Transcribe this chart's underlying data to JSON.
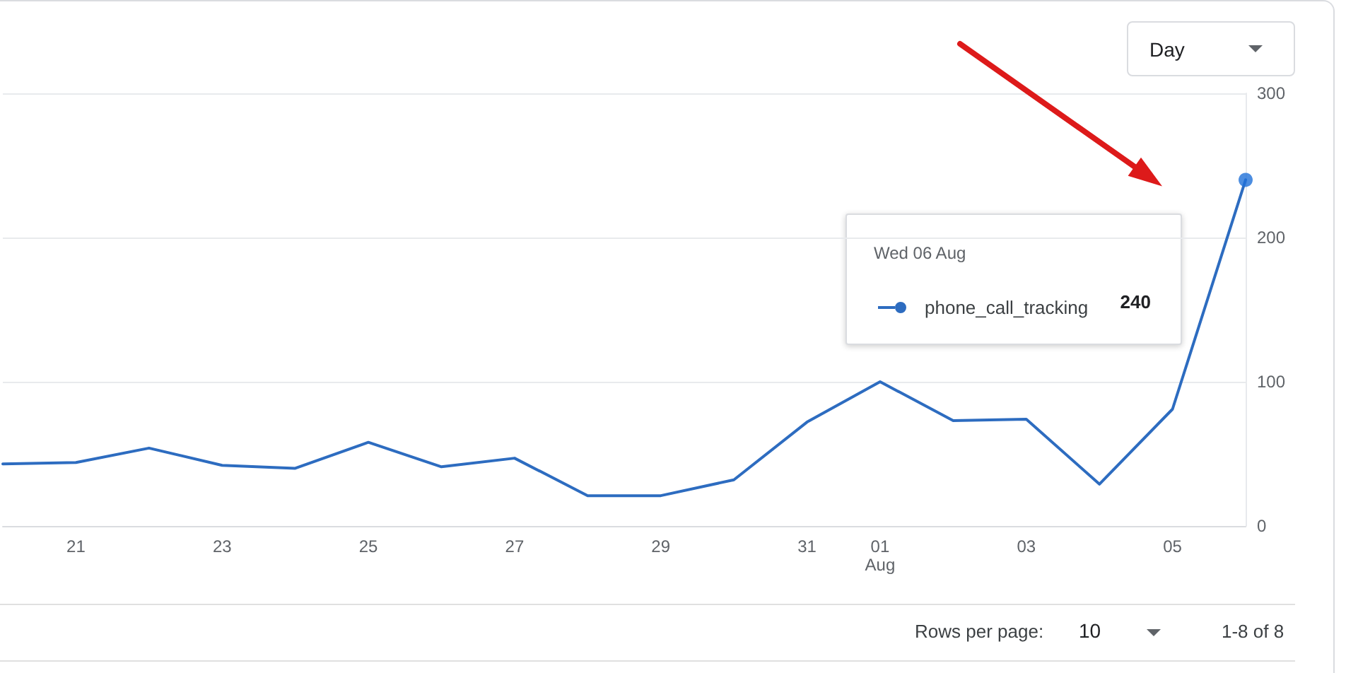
{
  "chart_data": {
    "type": "line",
    "x": [
      "--07-20",
      "--07-21",
      "--07-22",
      "--07-23",
      "--07-24",
      "--07-25",
      "--07-26",
      "--07-27",
      "--07-28",
      "--07-29",
      "--07-30",
      "--07-31",
      "--08-01",
      "--08-02",
      "--08-03",
      "--08-04",
      "--08-05",
      "--08-06"
    ],
    "xlim": [
      "--07-20",
      "--08-06"
    ],
    "xticks": [
      {
        "value": "--07-21",
        "label": "21"
      },
      {
        "value": "--07-23",
        "label": "23"
      },
      {
        "value": "--07-25",
        "label": "25"
      },
      {
        "value": "--07-27",
        "label": "27"
      },
      {
        "value": "--07-29",
        "label": "29"
      },
      {
        "value": "--07-31",
        "label": "31"
      },
      {
        "value": "--08-01",
        "label": "01\nAug"
      },
      {
        "value": "--08-03",
        "label": "03"
      },
      {
        "value": "--08-05",
        "label": "05"
      }
    ],
    "ylim": [
      0,
      300
    ],
    "yticks": [
      0,
      100,
      200,
      300
    ],
    "grid": "y",
    "legend": "right",
    "series": [
      {
        "name": "phone_call_tracking",
        "color": "#2d6cc0",
        "marker": "none",
        "line_style": "solid",
        "values": [
          43,
          44,
          54,
          42,
          40,
          58,
          41,
          47,
          21,
          21,
          32,
          72,
          100,
          73,
          74,
          29,
          81,
          240
        ]
      },
      {
        "type": "scatter",
        "x": [
          "--08-06"
        ],
        "color": "#1f70d8",
        "marker": "circle",
        "values": [
          240
        ]
      }
    ],
    "annotations": [
      "Wed 06 Aug",
      "240",
      "Day",
      "Rows per page:",
      "10",
      "1-8 of 8"
    ]
  }
}
